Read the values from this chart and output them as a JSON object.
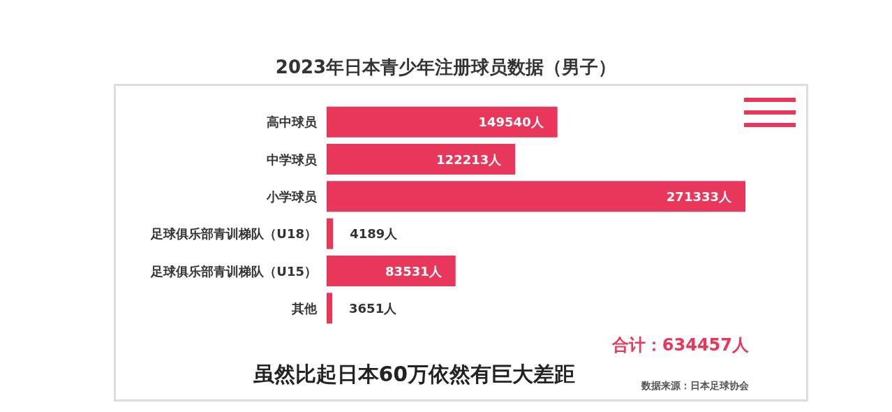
{
  "chart_data": {
    "type": "bar",
    "orientation": "horizontal",
    "title": "2023年日本青少年注册球员数据（男子）",
    "categories": [
      "高中球员",
      "中学球员",
      "小学球员",
      "足球俱乐部青训梯队（U18）",
      "足球俱乐部青训梯队（U15）",
      "其他"
    ],
    "values": [
      149540,
      122213,
      271333,
      4189,
      83531,
      3651
    ],
    "value_labels": [
      "149540人",
      "122213人",
      "271333人",
      "4189人",
      "83531人",
      "3651人"
    ],
    "color": "#e8375a",
    "annotations": [
      "合计：634457人",
      "虽然比起日本60万依然有巨大差距",
      "数据来源：日本足球协会"
    ]
  }
}
